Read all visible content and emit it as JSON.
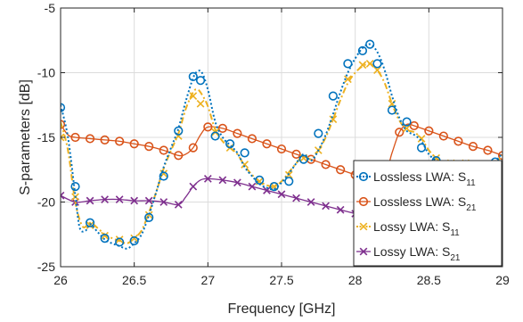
{
  "chart_data": {
    "type": "line",
    "title": "",
    "xlabel": "Frequency [GHz]",
    "ylabel": "S-parameters [dB]",
    "xlim": [
      26,
      29
    ],
    "ylim": [
      -25,
      -5
    ],
    "grid": true,
    "legend_position": "right",
    "x_ticks": [
      26,
      26.5,
      27,
      27.5,
      28,
      28.5,
      29
    ],
    "x_tick_labels": [
      "26",
      "26.5",
      "27",
      "27.5",
      "28",
      "28.5",
      "29"
    ],
    "y_ticks": [
      -25,
      -20,
      -15,
      -10,
      -5
    ],
    "y_tick_labels": [
      "-25",
      "-20",
      "-15",
      "-10",
      "-5"
    ],
    "series": [
      {
        "name": "Lossless LWA: S",
        "subscript": "11",
        "color": "#0072BD",
        "line_color": "#0072BD",
        "line_style": "dotted",
        "marker": "circle",
        "line_x": [
          26,
          26.05,
          26.1,
          26.13,
          26.17,
          26.2,
          26.25,
          26.3,
          26.35,
          26.4,
          26.45,
          26.5,
          26.55,
          26.6,
          26.65,
          26.7,
          26.75,
          26.8,
          26.85,
          26.9,
          26.93,
          26.96,
          27.0,
          27.05,
          27.1,
          27.15,
          27.2,
          27.25,
          27.3,
          27.35,
          27.4,
          27.45,
          27.5,
          27.55,
          27.6,
          27.65,
          27.7,
          27.75,
          27.8,
          27.85,
          27.9,
          27.95,
          28.0,
          28.05,
          28.1,
          28.15,
          28.2,
          28.25,
          28.3,
          28.35,
          28.4,
          28.45,
          28.5,
          28.55,
          28.6,
          28.65,
          28.7,
          28.75,
          28.8,
          28.85,
          28.9,
          28.95,
          29.0
        ],
        "line_y": [
          -12.5,
          -15.0,
          -19.5,
          -22.0,
          -22.2,
          -21.7,
          -22.3,
          -22.9,
          -23.2,
          -23.4,
          -23.6,
          -23.2,
          -22.5,
          -21.0,
          -19.2,
          -17.3,
          -15.8,
          -14.3,
          -12.2,
          -10.4,
          -9.9,
          -10.0,
          -11.3,
          -13.8,
          -15.0,
          -15.6,
          -16.2,
          -17.3,
          -18.0,
          -18.6,
          -18.9,
          -19.0,
          -18.5,
          -17.8,
          -17.0,
          -16.3,
          -16.8,
          -16.0,
          -14.8,
          -13.2,
          -11.5,
          -10.0,
          -8.9,
          -8.1,
          -7.8,
          -8.4,
          -9.8,
          -11.8,
          -13.5,
          -14.5,
          -14.8,
          -15.3,
          -16.3,
          -16.8,
          -17.1,
          -17.1,
          -17.0,
          -17.0,
          -17.3,
          -17.6,
          -17.5,
          -16.9,
          -16.2
        ],
        "marker_x": [
          26,
          26.1,
          26.2,
          26.3,
          26.4,
          26.5,
          26.6,
          26.7,
          26.8,
          26.9,
          26.95,
          27.05,
          27.15,
          27.25,
          27.35,
          27.45,
          27.55,
          27.65,
          27.75,
          27.85,
          27.95,
          28.05,
          28.1,
          28.15,
          28.25,
          28.35,
          28.45,
          28.55,
          28.65,
          28.75,
          28.85,
          28.95
        ],
        "marker_y": [
          -12.7,
          -18.8,
          -21.6,
          -22.8,
          -23.1,
          -23.0,
          -21.2,
          -18.0,
          -14.5,
          -10.3,
          -10.6,
          -14.9,
          -15.5,
          -16.2,
          -18.3,
          -18.8,
          -18.4,
          -16.7,
          -14.7,
          -11.8,
          -9.3,
          -8.3,
          -7.8,
          -9.3,
          -12.9,
          -13.8,
          -15.8,
          -16.8,
          -17.1,
          -17.1,
          -17.6,
          -16.9
        ]
      },
      {
        "name": "Lossless LWA: S",
        "subscript": "21",
        "color": "#D95319",
        "line_color": "#D95319",
        "line_style": "solid",
        "marker": "circle",
        "line_x": [
          26,
          26.05,
          26.1,
          26.2,
          26.3,
          26.4,
          26.5,
          26.6,
          26.7,
          26.8,
          26.85,
          26.9,
          26.95,
          27.0,
          27.1,
          27.2,
          27.3,
          27.4,
          27.5,
          27.6,
          27.7,
          27.8,
          27.9,
          28.0,
          28.1,
          28.2,
          28.25,
          28.3,
          28.35,
          28.4,
          28.5,
          28.6,
          28.7,
          28.8,
          28.9,
          29.0
        ],
        "line_y": [
          -14.0,
          -14.8,
          -15.0,
          -15.1,
          -15.2,
          -15.3,
          -15.5,
          -15.7,
          -16.0,
          -16.4,
          -16.3,
          -15.8,
          -14.8,
          -14.2,
          -14.3,
          -14.7,
          -15.1,
          -15.5,
          -15.9,
          -16.3,
          -16.7,
          -17.1,
          -17.5,
          -17.9,
          -18.3,
          -17.9,
          -16.2,
          -14.6,
          -14.0,
          -14.1,
          -14.5,
          -14.9,
          -15.3,
          -15.7,
          -16.0,
          -16.4
        ],
        "marker_x": [
          26,
          26.1,
          26.2,
          26.3,
          26.4,
          26.5,
          26.6,
          26.7,
          26.8,
          26.9,
          27.0,
          27.1,
          27.2,
          27.3,
          27.4,
          27.5,
          27.6,
          27.7,
          27.8,
          27.9,
          28.0,
          28.1,
          28.2,
          28.3,
          28.4,
          28.5,
          28.6,
          28.7,
          28.8,
          28.9,
          29.0
        ],
        "marker_y": [
          -14.0,
          -15.0,
          -15.1,
          -15.2,
          -15.3,
          -15.5,
          -15.7,
          -16.0,
          -16.4,
          -15.8,
          -14.2,
          -14.3,
          -14.7,
          -15.1,
          -15.5,
          -15.9,
          -16.3,
          -16.7,
          -17.1,
          -17.5,
          -17.9,
          -18.3,
          -17.9,
          -14.6,
          -14.1,
          -14.5,
          -14.9,
          -15.3,
          -15.7,
          -16.0,
          -16.4
        ]
      },
      {
        "name": "Lossy LWA: S",
        "subscript": "11",
        "color": "#EDB120",
        "line_color": "#EDB120",
        "line_style": "dash-dot",
        "marker": "x",
        "line_x": [
          26,
          26.05,
          26.1,
          26.15,
          26.2,
          26.25,
          26.3,
          26.35,
          26.4,
          26.45,
          26.5,
          26.55,
          26.6,
          26.65,
          26.7,
          26.75,
          26.8,
          26.85,
          26.9,
          26.93,
          26.96,
          27.0,
          27.05,
          27.1,
          27.15,
          27.2,
          27.25,
          27.3,
          27.35,
          27.4,
          27.45,
          27.5,
          27.55,
          27.6,
          27.65,
          27.7,
          27.75,
          27.8,
          27.85,
          27.9,
          27.95,
          28.0,
          28.05,
          28.1,
          28.15,
          28.2,
          28.25,
          28.3,
          28.35,
          28.4,
          28.45,
          28.5,
          28.55,
          28.6,
          28.65,
          28.7,
          28.75,
          28.8,
          28.85,
          28.9,
          28.95,
          29.0
        ],
        "line_y": [
          -13.8,
          -16.0,
          -20.0,
          -21.9,
          -21.6,
          -22.0,
          -22.5,
          -22.8,
          -23.0,
          -23.2,
          -22.8,
          -22.2,
          -20.8,
          -19.2,
          -17.4,
          -16.0,
          -14.7,
          -12.8,
          -11.5,
          -11.3,
          -11.7,
          -12.6,
          -14.4,
          -15.3,
          -15.8,
          -16.3,
          -17.2,
          -17.9,
          -18.4,
          -18.7,
          -18.8,
          -18.4,
          -17.7,
          -17.0,
          -16.4,
          -16.7,
          -16.0,
          -15.0,
          -13.6,
          -12.1,
          -10.8,
          -10.0,
          -9.5,
          -9.3,
          -9.8,
          -10.8,
          -12.4,
          -13.7,
          -14.4,
          -14.6,
          -15.1,
          -16.0,
          -16.6,
          -17.0,
          -17.0,
          -17.0,
          -17.0,
          -17.3,
          -17.6,
          -17.5,
          -17.0,
          -16.4
        ],
        "marker_x": [
          26,
          26.1,
          26.2,
          26.3,
          26.4,
          26.5,
          26.6,
          26.7,
          26.8,
          26.9,
          26.95,
          27.05,
          27.15,
          27.25,
          27.35,
          27.45,
          27.55,
          27.65,
          27.75,
          27.85,
          27.95,
          28.05,
          28.1,
          28.15,
          28.25,
          28.35,
          28.45,
          28.55,
          28.65,
          28.75,
          28.85,
          28.95
        ],
        "marker_y": [
          -15.0,
          -19.6,
          -21.8,
          -22.6,
          -22.9,
          -22.8,
          -21.0,
          -17.8,
          -14.9,
          -11.8,
          -12.4,
          -14.6,
          -15.8,
          -17.1,
          -18.4,
          -18.8,
          -17.9,
          -16.6,
          -16.0,
          -13.6,
          -10.5,
          -9.4,
          -9.3,
          -9.8,
          -12.4,
          -14.3,
          -15.1,
          -16.6,
          -17.0,
          -17.0,
          -17.6,
          -17.0
        ]
      },
      {
        "name": "Lossy LWA: S",
        "subscript": "21",
        "color": "#7E2F8E",
        "line_color": "#7E2F8E",
        "line_style": "solid",
        "marker": "x",
        "line_x": [
          26,
          26.1,
          26.2,
          26.3,
          26.4,
          26.5,
          26.6,
          26.7,
          26.8,
          26.85,
          26.9,
          26.95,
          27.0,
          27.1,
          27.2,
          27.3,
          27.4,
          27.5,
          27.6,
          27.7,
          27.8,
          27.9,
          28.0,
          28.1,
          28.2,
          28.3,
          28.4,
          28.5,
          28.6,
          28.7,
          28.8,
          28.9,
          29.0
        ],
        "line_y": [
          -19.5,
          -20.0,
          -19.9,
          -19.8,
          -19.8,
          -19.9,
          -19.9,
          -20.0,
          -20.2,
          -19.6,
          -18.8,
          -18.3,
          -18.2,
          -18.3,
          -18.5,
          -18.8,
          -19.1,
          -19.4,
          -19.7,
          -20.0,
          -20.3,
          -20.6,
          -20.9,
          -21.2,
          -21.5,
          -21.8,
          -22.1,
          -22.4,
          -22.6,
          -22.8,
          -22.9,
          -22.9,
          -22.9
        ],
        "marker_x": [
          26,
          26.1,
          26.2,
          26.3,
          26.4,
          26.5,
          26.6,
          26.7,
          26.8,
          26.9,
          27.0,
          27.1,
          27.2,
          27.3,
          27.4,
          27.5,
          27.6,
          27.7,
          27.8,
          27.9,
          28.0
        ],
        "marker_y": [
          -19.5,
          -20.0,
          -19.9,
          -19.8,
          -19.8,
          -19.9,
          -19.9,
          -20.0,
          -20.2,
          -18.8,
          -18.2,
          -18.3,
          -18.5,
          -18.8,
          -19.1,
          -19.4,
          -19.7,
          -20.0,
          -20.3,
          -20.6,
          -20.9
        ]
      }
    ]
  }
}
